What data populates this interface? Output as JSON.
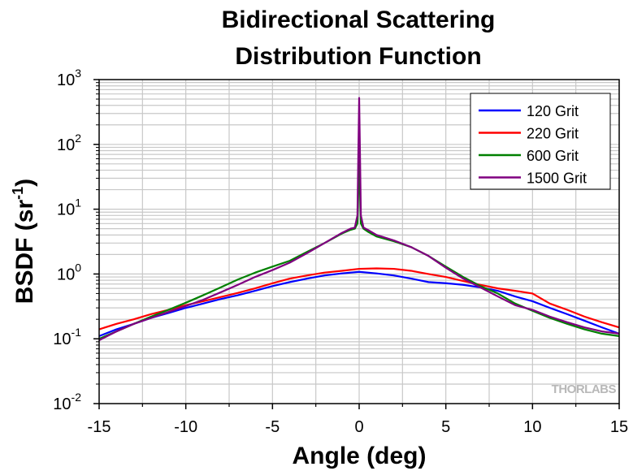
{
  "chart_data": {
    "type": "line",
    "title_lines": [
      "Bidirectional Scattering",
      "Distribution Function"
    ],
    "xlabel": "Angle (deg)",
    "ylabel": {
      "main": "BSDF (sr",
      "sup": "-1",
      "close": ")"
    },
    "xlim": [
      -15,
      15
    ],
    "ylim": [
      0.01,
      1000
    ],
    "y_scale": "log",
    "grid": true,
    "legend_position": "top-right",
    "watermark": "THORLABS",
    "x_ticks": [
      -15,
      -10,
      -5,
      0,
      5,
      10,
      15
    ],
    "x_tick_labels": [
      "-15",
      "-10",
      "-5",
      "0",
      "5",
      "10",
      "15"
    ],
    "y_ticks": [
      {
        "base": "10",
        "exp": "3"
      },
      {
        "base": "10",
        "exp": "2"
      },
      {
        "base": "10",
        "exp": "1"
      },
      {
        "base": "10",
        "exp": "0"
      },
      {
        "base": "10",
        "exp": "-1"
      },
      {
        "base": "10",
        "exp": "-2"
      }
    ],
    "series": [
      {
        "name": "120 Grit",
        "color": "#0000ff",
        "x": [
          -15,
          -14,
          -13,
          -12,
          -11,
          -10,
          -9,
          -8,
          -7,
          -6,
          -5,
          -4,
          -3,
          -2,
          -1,
          0,
          1,
          2,
          3,
          4,
          5,
          6,
          7,
          8,
          9,
          10,
          11,
          12,
          13,
          14,
          15
        ],
        "y": [
          0.11,
          0.14,
          0.17,
          0.21,
          0.25,
          0.3,
          0.35,
          0.41,
          0.47,
          0.55,
          0.65,
          0.75,
          0.85,
          0.95,
          1.02,
          1.08,
          1.02,
          0.95,
          0.85,
          0.75,
          0.72,
          0.68,
          0.62,
          0.55,
          0.45,
          0.38,
          0.3,
          0.24,
          0.19,
          0.15,
          0.12
        ]
      },
      {
        "name": "220 Grit",
        "color": "#ff0000",
        "x": [
          -15,
          -14,
          -13,
          -12,
          -11,
          -10,
          -9,
          -8,
          -7,
          -6,
          -5,
          -4,
          -3,
          -2,
          -1,
          0,
          1,
          2,
          3,
          4,
          5,
          6,
          7,
          8,
          9,
          10,
          11,
          12,
          13,
          14,
          15
        ],
        "y": [
          0.14,
          0.17,
          0.2,
          0.24,
          0.28,
          0.33,
          0.38,
          0.44,
          0.51,
          0.6,
          0.72,
          0.85,
          0.95,
          1.05,
          1.12,
          1.2,
          1.22,
          1.2,
          1.12,
          1.0,
          0.9,
          0.78,
          0.68,
          0.6,
          0.55,
          0.5,
          0.35,
          0.28,
          0.22,
          0.18,
          0.15
        ]
      },
      {
        "name": "600 Grit",
        "color": "#008000",
        "x": [
          -15,
          -14,
          -13,
          -12,
          -11,
          -10,
          -9,
          -8,
          -7,
          -6,
          -5,
          -4,
          -3,
          -2,
          -1,
          -0.5,
          -0.25,
          -0.1,
          0,
          0.1,
          0.25,
          0.5,
          1,
          2,
          3,
          4,
          5,
          6,
          7,
          8,
          9,
          10,
          11,
          12,
          13,
          14,
          15
        ],
        "y": [
          0.1,
          0.13,
          0.17,
          0.22,
          0.28,
          0.36,
          0.47,
          0.62,
          0.82,
          1.05,
          1.3,
          1.6,
          2.2,
          3.0,
          4.2,
          4.8,
          5.0,
          6.0,
          55,
          6.0,
          5.0,
          4.5,
          3.8,
          3.2,
          2.6,
          1.9,
          1.3,
          0.9,
          0.65,
          0.5,
          0.35,
          0.27,
          0.21,
          0.17,
          0.14,
          0.12,
          0.11
        ]
      },
      {
        "name": "1500 Grit",
        "color": "#800080",
        "x": [
          -15,
          -14,
          -13,
          -12,
          -11,
          -10,
          -9,
          -8,
          -7,
          -6,
          -5,
          -4,
          -3,
          -2,
          -1,
          -0.5,
          -0.25,
          -0.1,
          0,
          0.1,
          0.25,
          0.5,
          1,
          2,
          3,
          4,
          5,
          6,
          7,
          8,
          9,
          10,
          11,
          12,
          13,
          14,
          15
        ],
        "y": [
          0.095,
          0.13,
          0.17,
          0.21,
          0.26,
          0.32,
          0.4,
          0.52,
          0.68,
          0.9,
          1.15,
          1.5,
          2.1,
          3.0,
          4.3,
          5.0,
          5.2,
          8.0,
          520,
          8.0,
          5.2,
          4.8,
          4.0,
          3.3,
          2.6,
          1.9,
          1.25,
          0.85,
          0.62,
          0.45,
          0.33,
          0.28,
          0.22,
          0.18,
          0.15,
          0.13,
          0.12
        ]
      }
    ]
  }
}
